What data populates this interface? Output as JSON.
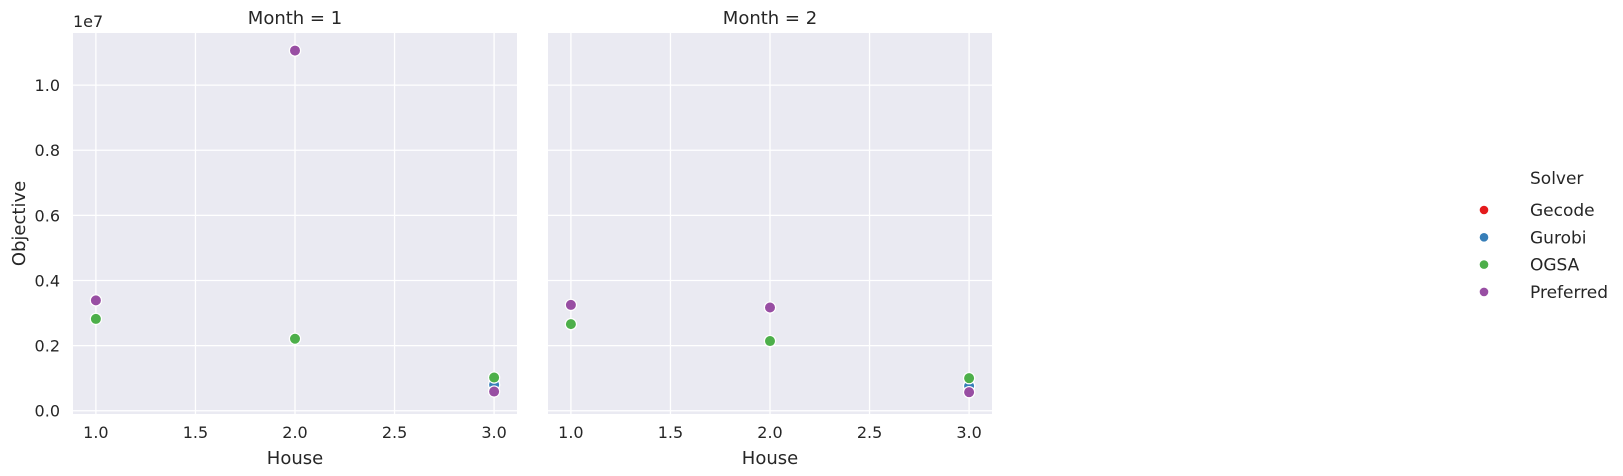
{
  "chart_data": {
    "type": "scatter",
    "facet_variable": "Month",
    "facets": [
      {
        "title": "Month = 1",
        "series": [
          {
            "name": "Gecode",
            "x": [
              3.0
            ],
            "y": [
              800000
            ]
          },
          {
            "name": "Gurobi",
            "x": [
              3.0
            ],
            "y": [
              800000
            ]
          },
          {
            "name": "OGSA",
            "x": [
              1.0,
              2.0,
              3.0
            ],
            "y": [
              2820000,
              2210000,
              1020000
            ]
          },
          {
            "name": "Preferred",
            "x": [
              1.0,
              2.0,
              3.0
            ],
            "y": [
              3390000,
              11060000,
              590000
            ]
          }
        ]
      },
      {
        "title": "Month = 2",
        "series": [
          {
            "name": "Gecode",
            "x": [
              3.0
            ],
            "y": [
              760000
            ]
          },
          {
            "name": "Gurobi",
            "x": [
              3.0
            ],
            "y": [
              760000
            ]
          },
          {
            "name": "OGSA",
            "x": [
              1.0,
              2.0,
              3.0
            ],
            "y": [
              2660000,
              2140000,
              1000000
            ]
          },
          {
            "name": "Preferred",
            "x": [
              1.0,
              2.0,
              3.0
            ],
            "y": [
              3250000,
              3170000,
              570000
            ]
          }
        ]
      }
    ],
    "xlabel": "House",
    "ylabel": "Objective",
    "y_offset_label": "1e7",
    "xlim": [
      0.885,
      3.115
    ],
    "ylim": [
      -100000,
      11600000
    ],
    "x_ticks": [
      1.0,
      1.5,
      2.0,
      2.5,
      3.0
    ],
    "x_tick_labels": [
      "1.0",
      "1.5",
      "2.0",
      "2.5",
      "3.0"
    ],
    "y_ticks": [
      0,
      2000000,
      4000000,
      6000000,
      8000000,
      10000000
    ],
    "y_tick_labels": [
      "0.0",
      "0.2",
      "0.4",
      "0.6",
      "0.8",
      "1.0"
    ],
    "grid": true,
    "legend": {
      "title": "Solver",
      "placement": "right",
      "entries": [
        "Gecode",
        "Gurobi",
        "OGSA",
        "Preferred"
      ]
    },
    "colors": {
      "Gecode": "#e41a1c",
      "Gurobi": "#377eb8",
      "OGSA": "#4daf4a",
      "Preferred": "#984ea3",
      "panel_background": "#eaeaf2",
      "grid": "#ffffff",
      "text": "#262626"
    }
  }
}
